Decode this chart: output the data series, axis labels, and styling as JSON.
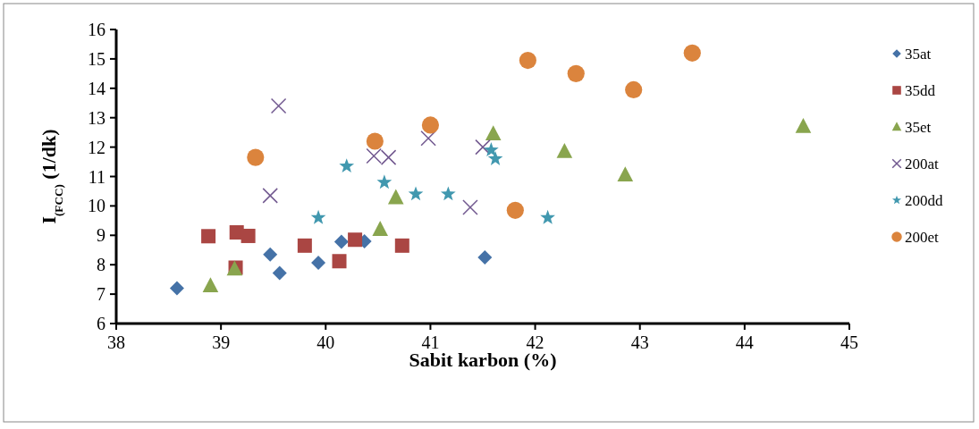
{
  "chart_data": {
    "type": "scatter",
    "xlabel": "Sabit karbon (%)",
    "ylabel": "I$_{(FCC)}$  (1/dk)",
    "xlim": [
      38,
      45
    ],
    "xticks": [
      38,
      39,
      40,
      41,
      42,
      43,
      44,
      45
    ],
    "ylim": [
      6,
      16
    ],
    "yticks": [
      6,
      7,
      8,
      9,
      10,
      11,
      12,
      13,
      14,
      15,
      16
    ],
    "grid": false,
    "legend": "right",
    "series": [
      {
        "name": "35at",
        "color": "#4572a7",
        "marker": "diamond",
        "x": [
          38.58,
          39.47,
          39.56,
          39.93,
          40.15,
          40.37,
          41.52
        ],
        "values": [
          7.2,
          8.35,
          7.72,
          8.07,
          8.78,
          8.8,
          8.25
        ]
      },
      {
        "name": "35dd",
        "color": "#aa4643",
        "marker": "square",
        "x": [
          38.88,
          39.14,
          39.15,
          39.26,
          39.8,
          40.13,
          40.28,
          40.73
        ],
        "values": [
          8.97,
          7.9,
          9.1,
          8.98,
          8.65,
          8.12,
          8.85,
          8.65
        ]
      },
      {
        "name": "35et",
        "color": "#89a54e",
        "marker": "triangle",
        "x": [
          38.9,
          39.13,
          40.52,
          40.67,
          41.6,
          42.28,
          42.86,
          44.56
        ],
        "values": [
          7.28,
          7.85,
          9.2,
          10.28,
          12.45,
          11.85,
          11.05,
          12.7
        ]
      },
      {
        "name": "200at",
        "color": "#71588f",
        "marker": "cross",
        "x": [
          39.47,
          39.55,
          40.46,
          40.6,
          40.98,
          41.38,
          41.5
        ],
        "values": [
          10.35,
          13.4,
          11.7,
          11.65,
          12.3,
          9.95,
          12.0
        ]
      },
      {
        "name": "200dd",
        "color": "#4198af",
        "marker": "star",
        "x": [
          39.93,
          40.2,
          40.56,
          40.86,
          41.17,
          41.58,
          41.62,
          42.12
        ],
        "values": [
          9.6,
          11.35,
          10.8,
          10.4,
          10.4,
          11.9,
          11.6,
          9.6
        ]
      },
      {
        "name": "200et",
        "color": "#db843d",
        "marker": "circle",
        "x": [
          39.33,
          40.47,
          41.0,
          41.81,
          41.93,
          42.39,
          42.94,
          43.5
        ],
        "values": [
          11.65,
          12.2,
          12.75,
          9.85,
          14.95,
          14.5,
          13.95,
          15.2
        ]
      }
    ]
  }
}
